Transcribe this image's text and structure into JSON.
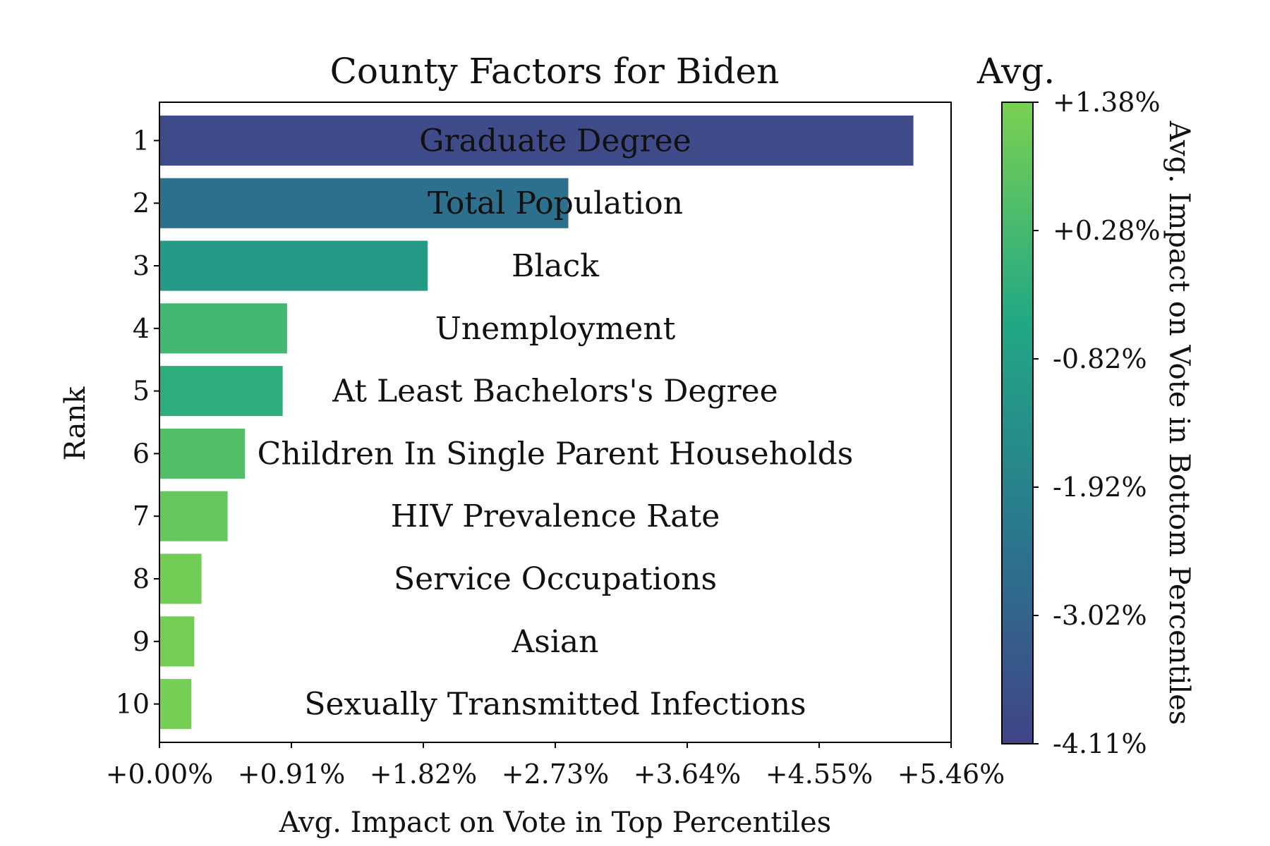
{
  "chart_data": {
    "type": "bar",
    "orientation": "horizontal",
    "title": "County Factors for Biden",
    "xlabel": "Avg. Impact on Vote in Top Percentiles",
    "ylabel": "Rank",
    "xlim": [
      0,
      5.46
    ],
    "xticks": [
      "+0.00%",
      "+0.91%",
      "+1.82%",
      "+2.73%",
      "+3.64%",
      "+4.55%",
      "+5.46%"
    ],
    "bars": [
      {
        "rank": "1",
        "label": "Graduate Degree",
        "value": 5.2,
        "color_value": -3.85
      },
      {
        "rank": "2",
        "label": "Total Population",
        "value": 2.82,
        "color_value": -2.55
      },
      {
        "rank": "3",
        "label": "Black",
        "value": 1.85,
        "color_value": -1.0
      },
      {
        "rank": "4",
        "label": "Unemployment",
        "value": 0.88,
        "color_value": 0.2
      },
      {
        "rank": "5",
        "label": "At Least Bachelors's Degree",
        "value": 0.85,
        "color_value": -0.2
      },
      {
        "rank": "6",
        "label": "Children In Single Parent Households",
        "value": 0.59,
        "color_value": 0.55
      },
      {
        "rank": "7",
        "label": "HIV Prevalence Rate",
        "value": 0.47,
        "color_value": 0.95
      },
      {
        "rank": "8",
        "label": "Service Occupations",
        "value": 0.29,
        "color_value": 1.2
      },
      {
        "rank": "9",
        "label": "Asian",
        "value": 0.24,
        "color_value": 1.25
      },
      {
        "rank": "10",
        "label": "Sexually Transmitted Infections",
        "value": 0.22,
        "color_value": 1.28
      }
    ],
    "colorbar": {
      "title": "Avg.",
      "label": "Avg. Impact on Vote in Bottom Percentiles",
      "range": [
        -4.11,
        1.38
      ],
      "ticks": [
        "-4.11%",
        "-3.02%",
        "-1.92%",
        "-0.82%",
        "+0.28%",
        "+1.38%"
      ],
      "colormap": "viridis",
      "color_stops": [
        "#414487",
        "#2a788e",
        "#22a884",
        "#7ad151"
      ]
    },
    "grid": false,
    "legend": "none"
  }
}
